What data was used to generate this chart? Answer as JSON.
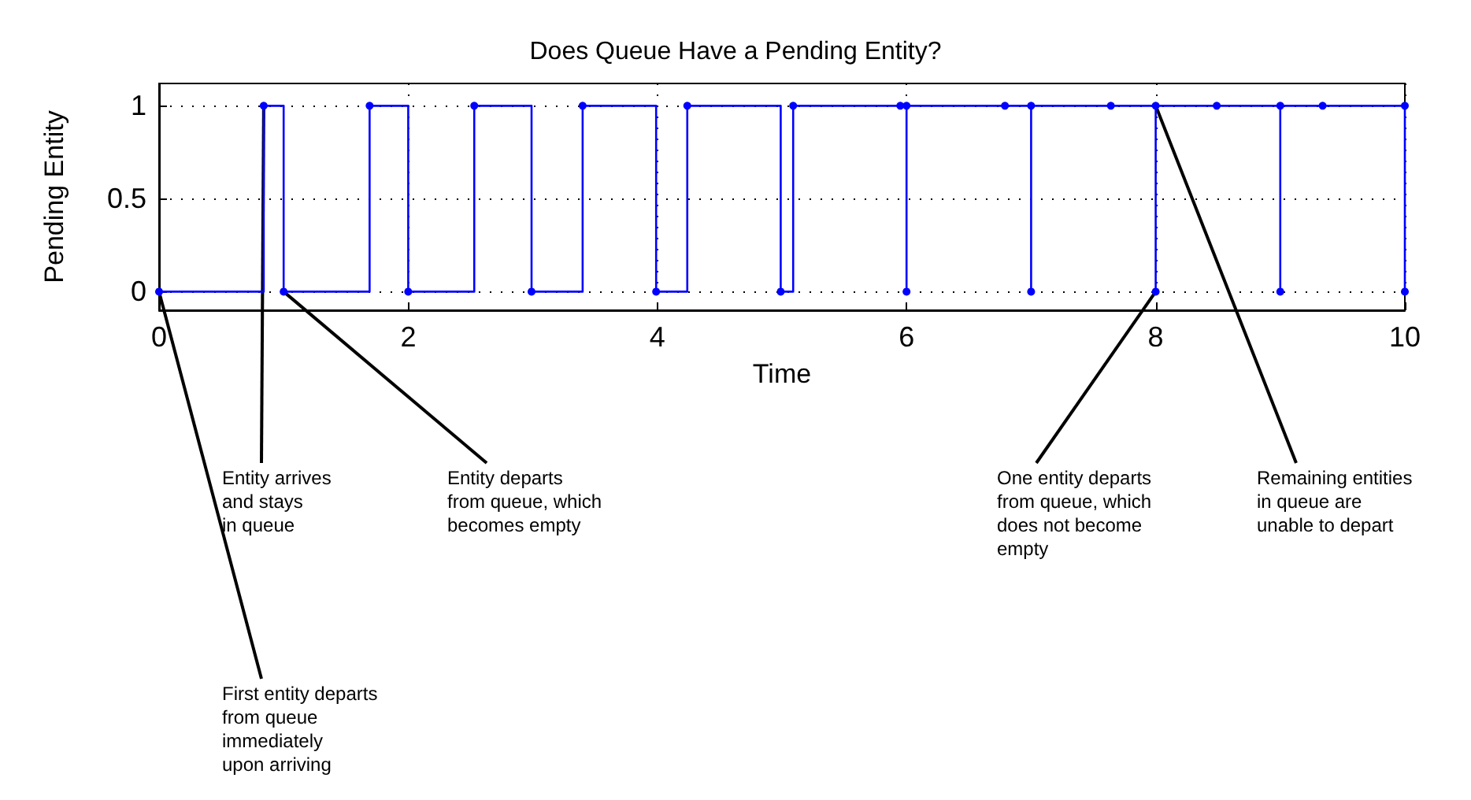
{
  "chart_data": {
    "type": "step",
    "title": "Does Queue Have a Pending Entity?",
    "xlabel": "Time",
    "ylabel": "Pending Entity",
    "x": [
      0,
      0.84,
      1.0,
      1.69,
      2.0,
      2.53,
      2.99,
      3.4,
      3.99,
      4.24,
      4.99,
      5.09,
      5.95,
      6.0,
      6.0,
      6.79,
      7.0,
      7.0,
      7.64,
      8.0,
      8.0,
      8.49,
      9.0,
      9.0,
      9.34,
      10.0,
      10.0
    ],
    "series": [
      {
        "color": "#0000ff",
        "values": [
          0,
          1,
          0,
          1,
          0,
          1,
          0,
          1,
          0,
          1,
          0,
          1,
          1,
          0,
          1,
          1,
          0,
          1,
          1,
          0,
          1,
          1,
          0,
          1,
          1,
          0,
          1
        ]
      }
    ],
    "xlim": [
      0,
      10
    ],
    "xticks": [
      0,
      2,
      4,
      6,
      8,
      10
    ],
    "ylim": [
      -0.1,
      1.12
    ],
    "yticks": [
      0,
      0.5,
      1
    ],
    "grid": true,
    "marker": "circle",
    "line_style": "solid",
    "annotations": [
      {
        "text": "First entity departs\nfrom queue\nimmediately\nupon arriving",
        "x": 0,
        "y": 0
      },
      {
        "text": "Entity arrives\nand stays\nin queue",
        "x": 0.84,
        "y": 1
      },
      {
        "text": "Entity departs\nfrom queue, which\nbecomes empty",
        "x": 1.0,
        "y": 0
      },
      {
        "text": "One entity departs\nfrom queue, which\ndoes not become\nempty",
        "x": 8.0,
        "y": 0
      },
      {
        "text": "Remaining entities\nin queue are\nunable to depart",
        "x": 8.0,
        "y": 1
      }
    ]
  }
}
